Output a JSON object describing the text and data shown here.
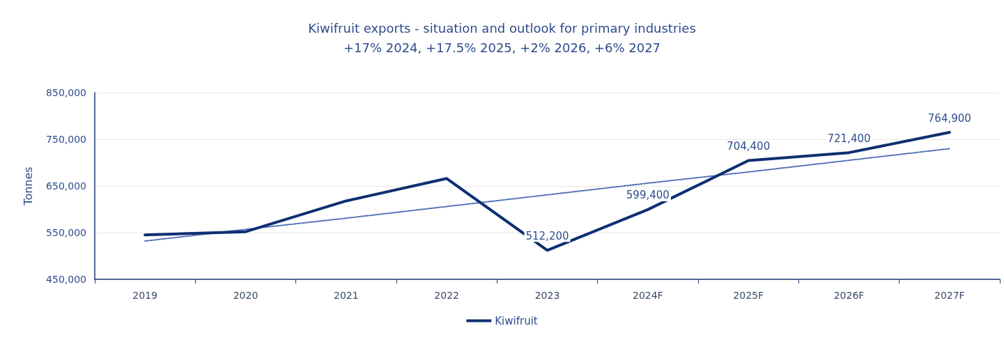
{
  "chart_data": {
    "type": "line",
    "title": "Kiwifruit exports - situation and outlook for primary industries",
    "subtitle": "+17% 2024, +17.5% 2025, +2% 2026, +6% 2027",
    "ylabel": "Tonnes",
    "categories": [
      "2019",
      "2020",
      "2021",
      "2022",
      "2023",
      "2024F",
      "2025F",
      "2026F",
      "2027F"
    ],
    "series": [
      {
        "name": "Kiwifruit",
        "color": "#0e2f72",
        "values": [
          545000,
          552000,
          618000,
          666000,
          512200,
          599400,
          704400,
          721400,
          764900
        ],
        "value_labels": [
          null,
          null,
          null,
          null,
          "512,200",
          "599,400",
          "704,400",
          "721,400",
          "764,900"
        ]
      },
      {
        "color": "#4a6cb3",
        "line_style": "dotted",
        "values": [
          532000,
          557000,
          581000,
          606000,
          631000,
          656000,
          680000,
          705000,
          730000
        ]
      }
    ],
    "ylim": [
      450000,
      850000
    ],
    "yticks": [
      {
        "value": 450000,
        "label": "450,000"
      },
      {
        "value": 550000,
        "label": "550,000"
      },
      {
        "value": 650000,
        "label": "650,000"
      },
      {
        "value": 750000,
        "label": "750,000"
      },
      {
        "value": 850000,
        "label": "850,000"
      }
    ],
    "grid": "y",
    "legend": "bottom",
    "marker": "none",
    "line_style": "solid"
  }
}
